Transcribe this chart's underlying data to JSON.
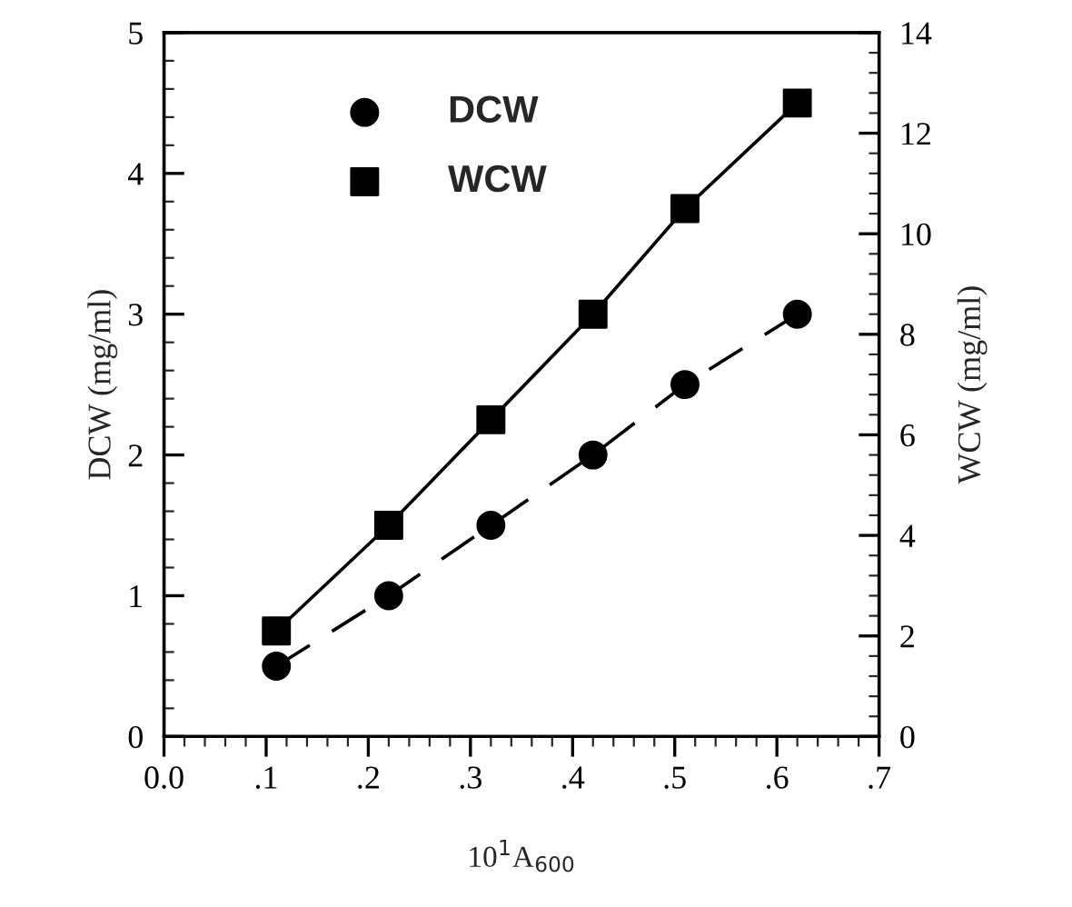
{
  "chart_data": {
    "type": "line",
    "x": [
      0.11,
      0.22,
      0.32,
      0.42,
      0.51,
      0.62
    ],
    "series": [
      {
        "name": "DCW",
        "color": "#000000",
        "values": [
          0.5,
          1.0,
          1.5,
          2.0,
          2.5,
          3.0
        ],
        "marker": "circle",
        "line_style": "dashed",
        "axis": "y"
      },
      {
        "name": "WCW",
        "color": "#000000",
        "values": [
          2.1,
          4.2,
          6.3,
          8.4,
          10.5,
          12.6
        ],
        "marker": "square",
        "line_style": "solid",
        "axis": "y2"
      }
    ],
    "xlabel": "10$^{1}$A$_{600}$",
    "ylabel": "DCW (mg/ml)",
    "y2label": "WCW (mg/ml)",
    "xlim": [
      0,
      0.7
    ],
    "xticks": [
      {
        "value": 0,
        "label": "0.0"
      },
      {
        "value": 0.1,
        "label": ".1"
      },
      {
        "value": 0.2,
        "label": ".2"
      },
      {
        "value": 0.3,
        "label": ".3"
      },
      {
        "value": 0.4,
        "label": ".4"
      },
      {
        "value": 0.5,
        "label": ".5"
      },
      {
        "value": 0.6,
        "label": ".6"
      },
      {
        "value": 0.7,
        "label": ".7"
      }
    ],
    "ylim": [
      0,
      5
    ],
    "yticks": [
      0,
      1,
      2,
      3,
      4,
      5
    ],
    "y2lim": [
      0,
      14
    ],
    "y2ticks": [
      0,
      2,
      4,
      6,
      8,
      10,
      12,
      14
    ],
    "grid": false,
    "legend": "top left"
  }
}
